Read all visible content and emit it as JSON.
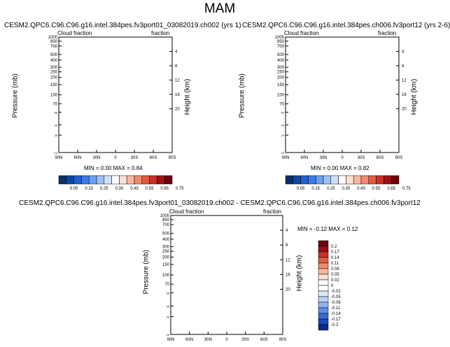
{
  "main_title": "MAM",
  "chart_data": [
    {
      "type": "heatmap",
      "title": "CESM2.QPC6.C96.C96.g16.intel.384pes.fv3port01_03082019.ch002 (yrs 1)",
      "left_string": "Cloud fraction",
      "right_string": "fraction",
      "xlabel": "",
      "ylabel": "Pressure (mb)",
      "ylabel_right": "Height (km)",
      "x_ticks": [
        "90N",
        "60N",
        "30N",
        "0",
        "30S",
        "60S",
        "90S"
      ],
      "y_ticks": [
        "1000",
        "850",
        "700",
        "500",
        "400",
        "300",
        "250",
        "200",
        "150",
        "100",
        "70",
        "50",
        "30",
        "20",
        "10"
      ],
      "height_ticks": [
        "4",
        "8",
        "12",
        "16",
        "20"
      ],
      "min_label": "MIN =   0.00   MAX =   0.84",
      "min": 0.0,
      "max": 0.84,
      "contour_levels": [
        0.05,
        0.15,
        0.25,
        0.35,
        0.45,
        0.55,
        0.65,
        0.75
      ]
    },
    {
      "type": "heatmap",
      "title": "CESM2.QPC6.C96.C96.g16.intel.384pes.ch006.fv3port12 (yrs 2-6)",
      "left_string": "Cloud fraction",
      "right_string": "fraction",
      "xlabel": "",
      "ylabel": "Pressure (mb)",
      "ylabel_right": "Height (km)",
      "x_ticks": [
        "90N",
        "60N",
        "30N",
        "0",
        "30S",
        "60S",
        "90S"
      ],
      "y_ticks": [
        "1000",
        "850",
        "700",
        "500",
        "400",
        "300",
        "250",
        "200",
        "150",
        "100",
        "70",
        "50",
        "30",
        "20",
        "10"
      ],
      "height_ticks": [
        "4",
        "8",
        "12",
        "16",
        "20"
      ],
      "min_label": "MIN =   0.00   MAX =   0.82",
      "min": 0.0,
      "max": 0.82,
      "contour_levels": [
        0.05,
        0.15,
        0.25,
        0.35,
        0.45,
        0.55,
        0.65,
        0.75
      ]
    },
    {
      "type": "heatmap",
      "title": "CESM2.QPC6.C96.C96.g16.intel.384pes.fv3port01_03082019.ch002 - CESM2.QPC6.C96.C96.g16.intel.384pes.ch006.fv3port12",
      "left_string": "Cloud fraction",
      "right_string": "fraction",
      "xlabel": "",
      "ylabel": "Pressure (mb)",
      "ylabel_right": "Height (km)",
      "x_ticks": [
        "90N",
        "60N",
        "30N",
        "0",
        "30S",
        "60S",
        "90S"
      ],
      "y_ticks": [
        "1000",
        "850",
        "700",
        "500",
        "400",
        "300",
        "250",
        "200",
        "150",
        "100",
        "70",
        "50",
        "30",
        "20",
        "10"
      ],
      "height_ticks": [
        "4",
        "8",
        "12",
        "16",
        "20"
      ],
      "min_label": "MIN = -0.12   MAX =   0.12",
      "min": -0.12,
      "max": 0.12,
      "contour_levels": [
        0.2,
        0.17,
        0.14,
        0.11,
        0.08,
        0.05,
        0.02,
        0,
        -0.02,
        -0.05,
        -0.08,
        -0.11,
        -0.14,
        -0.17,
        -0.2
      ]
    }
  ],
  "colorbar_labels": [
    "0.05",
    "0.15",
    "0.25",
    "0.35",
    "0.45",
    "0.55",
    "0.65",
    "0.75"
  ],
  "diff_colorbar_labels": [
    "0.2",
    "0.17",
    "0.14",
    "0.11",
    "0.08",
    "0.05",
    "0.02",
    "0",
    "-0.02",
    "-0.05",
    "-0.08",
    "-0.11",
    "-0.14",
    "-0.17",
    "-0.2"
  ],
  "seq_colors": [
    "#08306b",
    "#0d47a1",
    "#1f5fd0",
    "#3a7be8",
    "#6aa0f0",
    "#9cc1f5",
    "#cfe0fa",
    "#ffffff",
    "#fde0d2",
    "#f9b79e",
    "#f28b6d",
    "#e35a44",
    "#c8302a",
    "#9e1016",
    "#6b0008"
  ],
  "div_colors": [
    "#6b0008",
    "#9e1016",
    "#c8302a",
    "#e35a44",
    "#f28b6d",
    "#f9b79e",
    "#fde0d2",
    "#ffffff",
    "#ffffff",
    "#dbe8fb",
    "#b9d1f7",
    "#8fb4f0",
    "#5f8fe4",
    "#3a6ad6",
    "#1f46b8",
    "#0b2a8a"
  ]
}
